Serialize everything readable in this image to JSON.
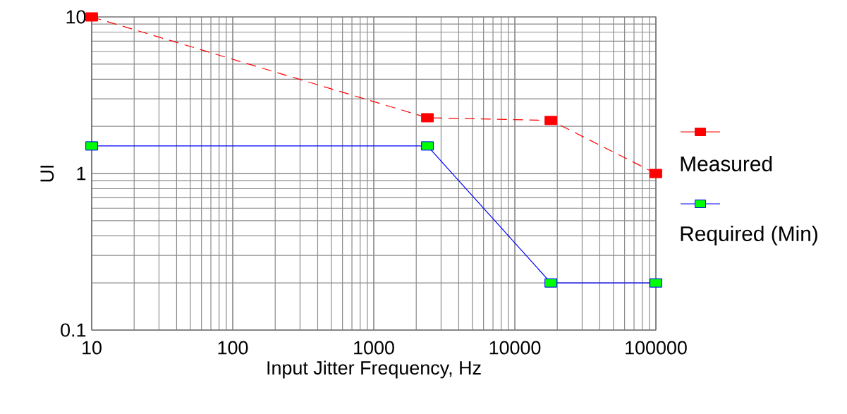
{
  "chart_data": {
    "type": "line",
    "xlabel": "Input Jitter Frequency, Hz",
    "ylabel": "UI",
    "x": [
      10,
      2400,
      18000,
      100000
    ],
    "series": [
      {
        "name": "Measured",
        "color": "#ff0000",
        "values": [
          10,
          2.27,
          2.18,
          1.0
        ],
        "line_style": "dashed"
      },
      {
        "name": "Required (Min)",
        "color": "#0000ff",
        "values": [
          1.5,
          1.5,
          0.2,
          0.2
        ],
        "line_style": "solid"
      }
    ],
    "log": "xy",
    "xlim": [
      10,
      100000
    ],
    "ylim": [
      0.1,
      10
    ],
    "xticks": [
      10,
      100,
      1000,
      10000,
      100000
    ],
    "yticks": [
      0.1,
      1,
      10
    ],
    "grid": true,
    "legend": "right",
    "marker": "square"
  }
}
